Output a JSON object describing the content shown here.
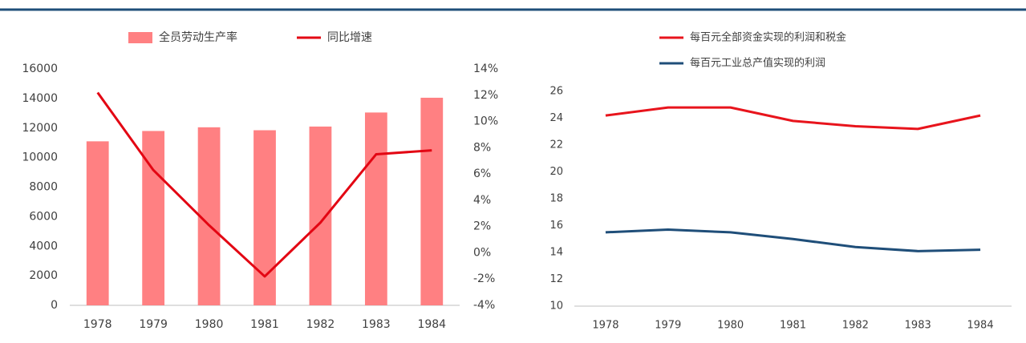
{
  "chart_data": [
    {
      "type": "combo",
      "categories": [
        "1978",
        "1979",
        "1980",
        "1981",
        "1982",
        "1983",
        "1984"
      ],
      "series": [
        {
          "name": "全员劳动生产率",
          "type": "bar",
          "color": "#ff8082",
          "values": [
            11100,
            11800,
            12050,
            11850,
            12100,
            13050,
            14050
          ]
        },
        {
          "name": "同比增速",
          "type": "line",
          "axis": "y2",
          "color": "#e30613",
          "values": [
            12.2,
            6.3,
            2.1,
            -1.8,
            2.3,
            7.5,
            7.8
          ]
        }
      ],
      "ylim": [
        0,
        16000
      ],
      "yticks": [
        0,
        2000,
        4000,
        6000,
        8000,
        10000,
        12000,
        14000,
        16000
      ],
      "y2lim": [
        -4,
        14
      ],
      "y2ticks": [
        {
          "value": -4,
          "label": "-4%"
        },
        {
          "value": -2,
          "label": "-2%"
        },
        {
          "value": 0,
          "label": "0%"
        },
        {
          "value": 2,
          "label": "2%"
        },
        {
          "value": 4,
          "label": "4%"
        },
        {
          "value": 6,
          "label": "6%"
        },
        {
          "value": 8,
          "label": "8%"
        },
        {
          "value": 10,
          "label": "10%"
        },
        {
          "value": 12,
          "label": "12%"
        },
        {
          "value": 14,
          "label": "14%"
        }
      ],
      "legend": "top"
    },
    {
      "type": "line",
      "categories": [
        "1978",
        "1979",
        "1980",
        "1981",
        "1982",
        "1983",
        "1984"
      ],
      "series": [
        {
          "name": "每百元全部资金实现的利润和税金",
          "color": "#e8141c",
          "values": [
            24.2,
            24.8,
            24.8,
            23.8,
            23.4,
            23.2,
            24.2
          ]
        },
        {
          "name": "每百元工业总产值实现的利润",
          "color": "#1f4e79",
          "values": [
            15.5,
            15.7,
            15.5,
            15.0,
            14.4,
            14.1,
            14.2
          ]
        }
      ],
      "ylim": [
        10,
        26
      ],
      "yticks": [
        10,
        12,
        14,
        16,
        18,
        20,
        22,
        24,
        26
      ],
      "legend": "top-left"
    }
  ]
}
